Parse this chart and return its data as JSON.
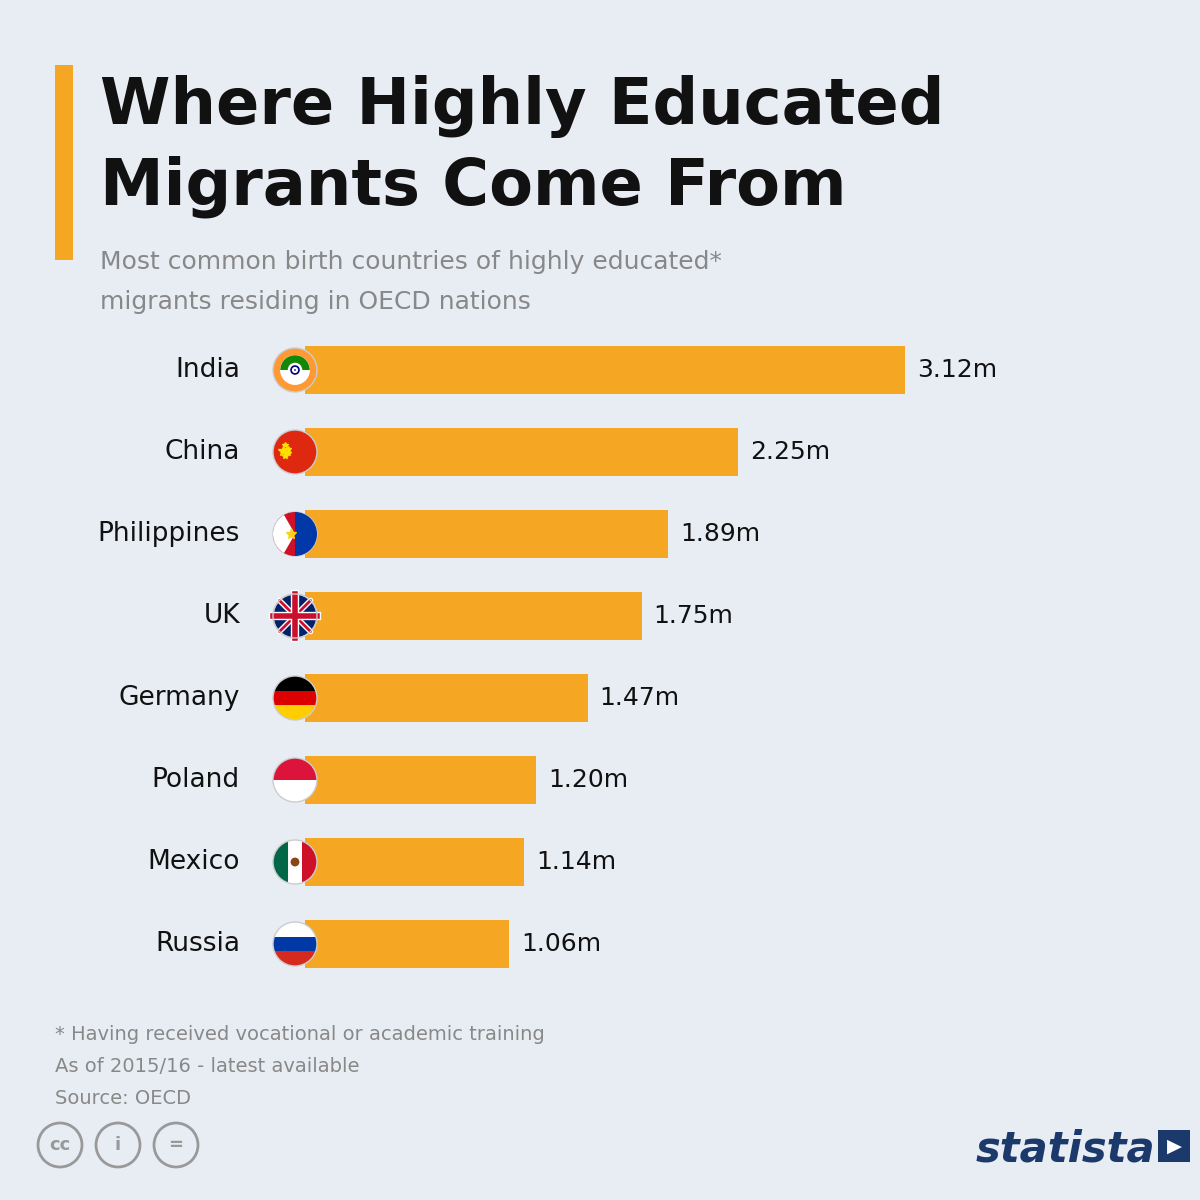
{
  "title_line1": "Where Highly Educated",
  "title_line2": "Migrants Come From",
  "subtitle_line1": "Most common birth countries of highly educated*",
  "subtitle_line2": "migrants residing in OECD nations",
  "countries": [
    "India",
    "China",
    "Philippines",
    "UK",
    "Germany",
    "Poland",
    "Mexico",
    "Russia"
  ],
  "values": [
    3.12,
    2.25,
    1.89,
    1.75,
    1.47,
    1.2,
    1.14,
    1.06
  ],
  "labels": [
    "3.12m",
    "2.25m",
    "1.89m",
    "1.75m",
    "1.47m",
    "1.20m",
    "1.14m",
    "1.06m"
  ],
  "bar_color": "#F5A623",
  "background_color": "#E8EDF4",
  "title_color": "#111111",
  "subtitle_color": "#888888",
  "label_color": "#111111",
  "footnote_line1": "* Having received vocational or academic training",
  "footnote_line2": "As of 2015/16 - latest available",
  "footnote_line3": "Source: OECD",
  "accent_color": "#F5A623",
  "statista_color": "#1B3A6B"
}
